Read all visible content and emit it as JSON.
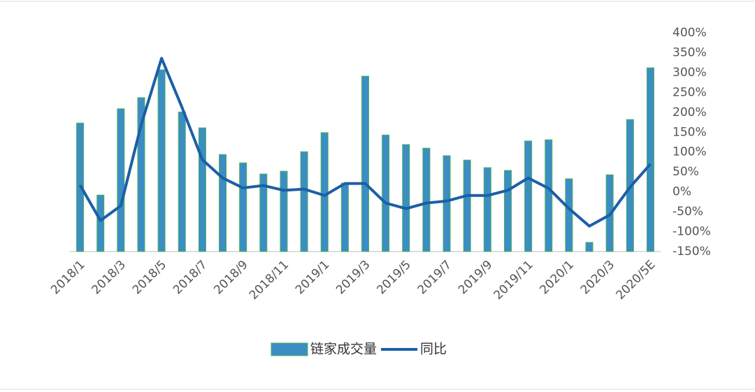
{
  "chart_data": {
    "type": "bar_line",
    "categories": [
      "2018/1",
      null,
      "2018/3",
      null,
      "2018/5",
      null,
      "2018/7",
      null,
      "2018/9",
      null,
      "2018/11",
      null,
      "2019/1",
      null,
      "2019/3",
      null,
      "2019/5",
      null,
      "2019/7",
      null,
      "2019/9",
      null,
      "2019/11",
      null,
      "2020/1",
      null,
      "2020/3",
      null,
      "2020/5E"
    ],
    "series": [
      {
        "name": "链家成交量",
        "type": "bar",
        "color": "#3b8dc4",
        "edge_color": "#4cb05a",
        "values": [
          173,
          -8,
          209,
          237,
          307,
          201,
          161,
          94,
          73,
          45,
          52,
          101,
          149,
          22,
          291,
          143,
          119,
          110,
          91,
          80,
          61,
          54,
          128,
          131,
          33,
          -127,
          43,
          182,
          312
        ]
      },
      {
        "name": "同比",
        "type": "line",
        "color": "#1b5fa6",
        "values": [
          17,
          -72,
          -35,
          169,
          336,
          213,
          81,
          35,
          10,
          16,
          4,
          7,
          -9,
          21,
          21,
          -28,
          -42,
          -28,
          -23,
          -9,
          -9,
          4,
          35,
          9,
          -42,
          -86,
          -58,
          12,
          70
        ]
      }
    ],
    "ylim": [
      -150,
      400
    ],
    "yticks": [
      {
        "value": 400,
        "label": "400%"
      },
      {
        "value": 350,
        "label": "350%"
      },
      {
        "value": 300,
        "label": "300%"
      },
      {
        "value": 250,
        "label": "250%"
      },
      {
        "value": 200,
        "label": "200%"
      },
      {
        "value": 150,
        "label": "150%"
      },
      {
        "value": 100,
        "label": "100%"
      },
      {
        "value": 50,
        "label": "50%"
      },
      {
        "value": 0,
        "label": "0%"
      },
      {
        "value": -50,
        "label": "-50%"
      },
      {
        "value": -100,
        "label": "-100%"
      },
      {
        "value": -150,
        "label": "-150%"
      }
    ],
    "yaxis_side": "right",
    "grid": false,
    "legend": "bottom"
  }
}
